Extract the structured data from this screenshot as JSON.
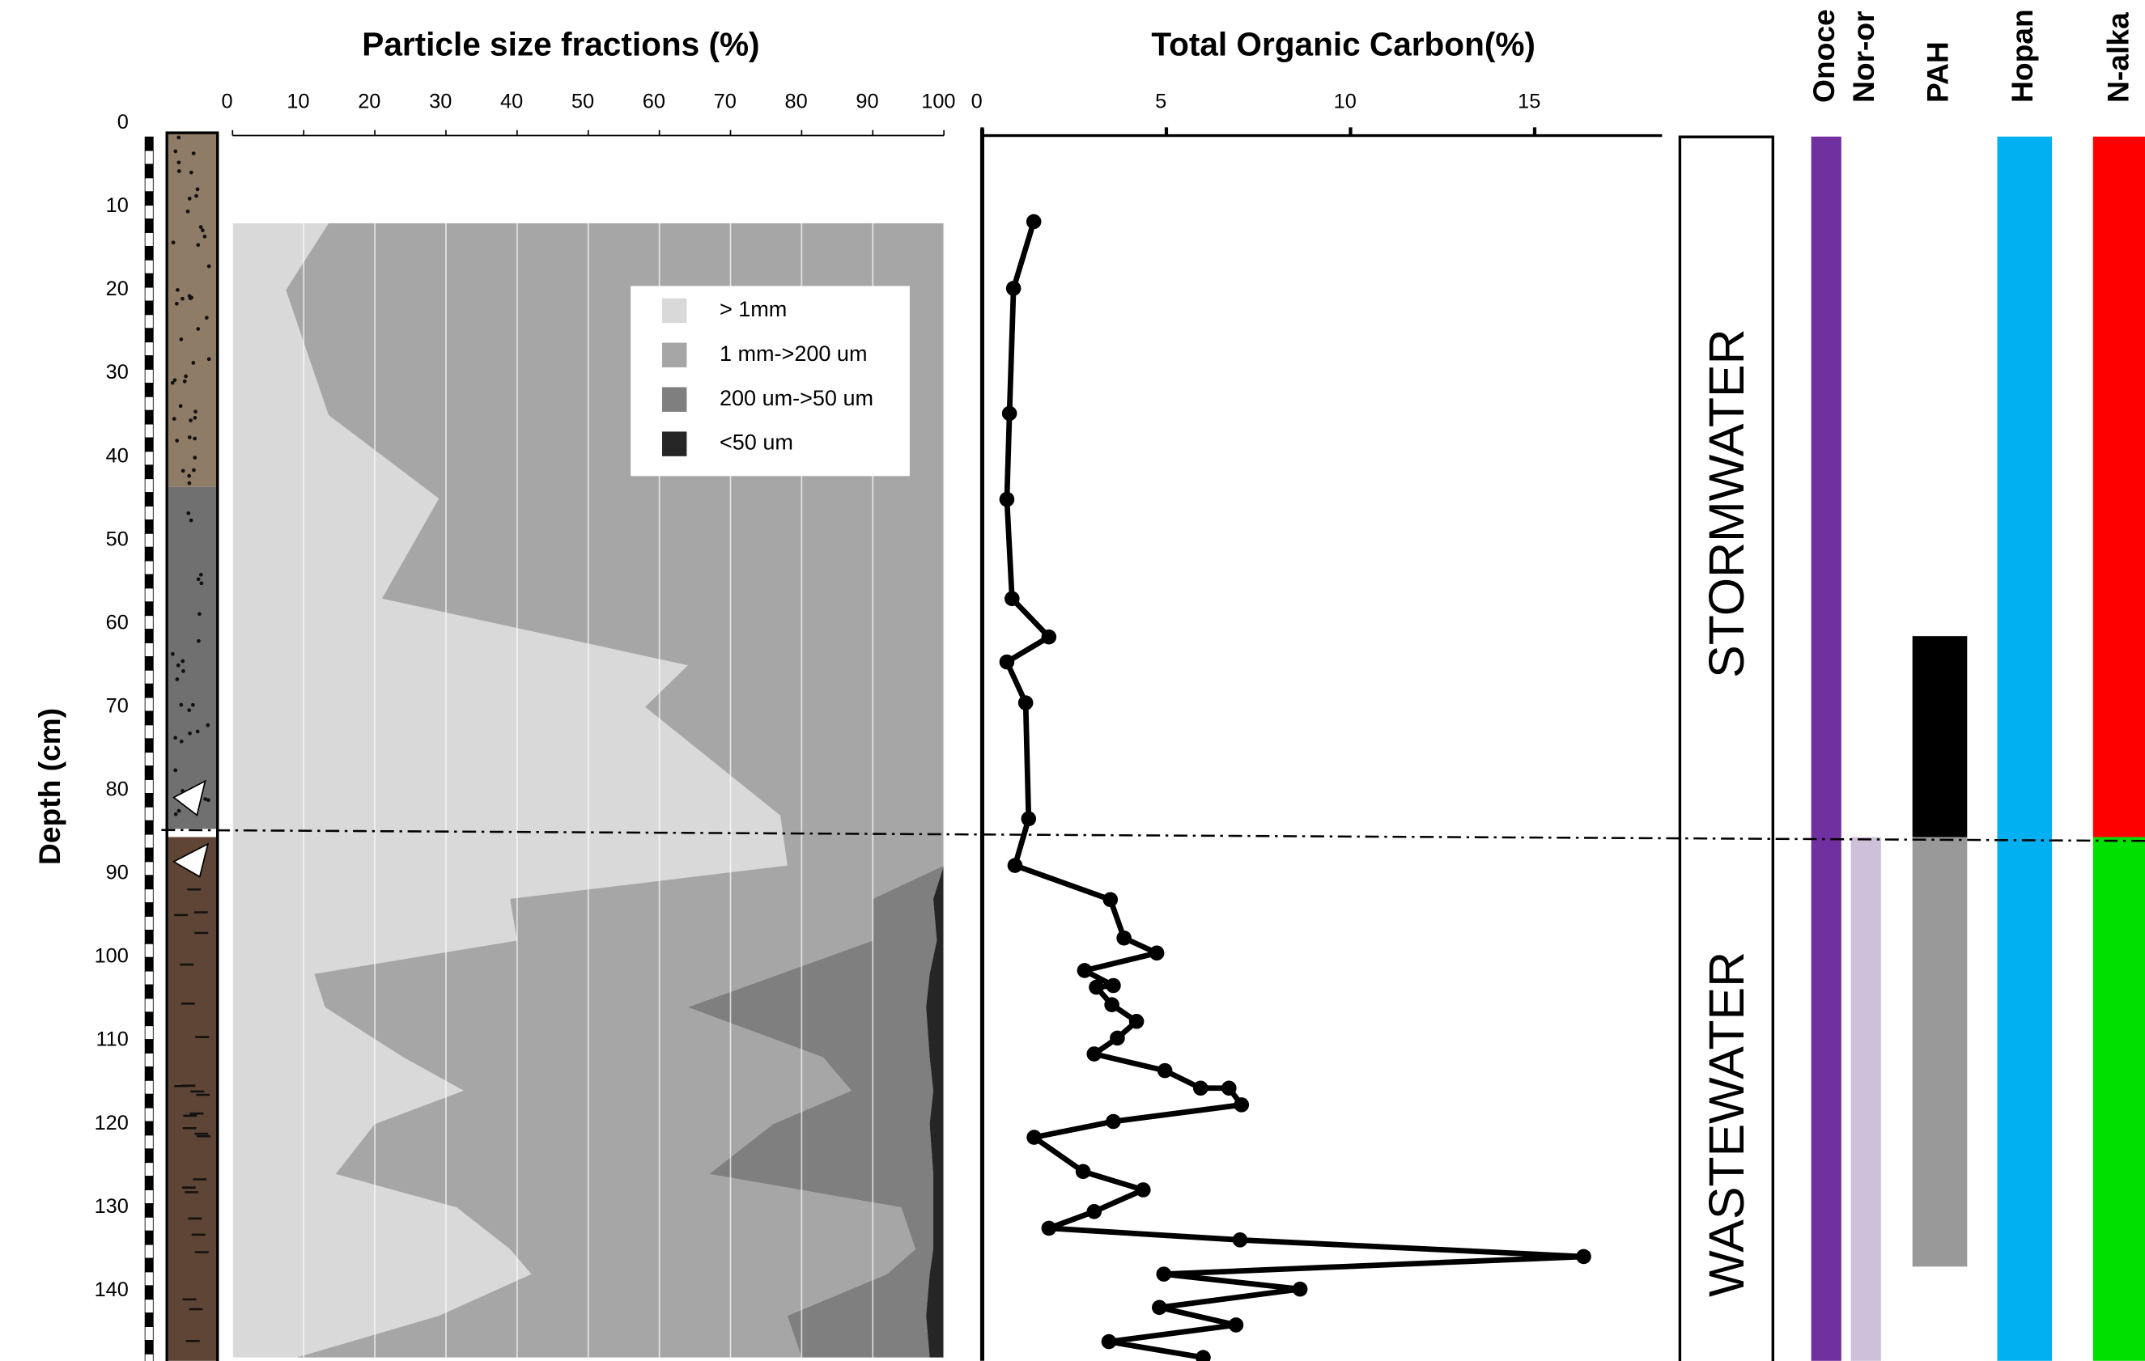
{
  "depth_axis": {
    "label": "Depth (cm)",
    "lim": [
      0,
      148.4
    ],
    "ticks": [
      0,
      10,
      20,
      30,
      40,
      50,
      60,
      70,
      80,
      90,
      100,
      110,
      120,
      130,
      140
    ]
  },
  "boundary": 85.4,
  "zones": [
    {
      "label": "STORMWATER"
    },
    {
      "label": "WASTEWATER"
    }
  ],
  "chart_data": [
    {
      "type": "area",
      "title": "Particle size fractions (%)",
      "xlim": [
        0,
        100
      ],
      "xticks": [
        0,
        10,
        20,
        30,
        40,
        50,
        60,
        70,
        80,
        90,
        100
      ],
      "grid": true,
      "y": [
        12,
        20,
        35,
        45,
        57,
        65,
        70,
        83,
        89,
        93,
        98,
        102,
        106,
        112,
        116,
        120,
        126,
        130,
        135,
        138,
        143,
        148
      ],
      "series": [
        {
          "name": "> 1mm",
          "color": "#d9d9d9",
          "values": [
            13.5,
            7.5,
            13.5,
            29,
            21,
            64,
            58,
            77,
            78,
            39,
            40,
            11.5,
            13,
            24,
            32.5,
            20,
            14.5,
            31.5,
            39,
            42,
            29,
            9
          ]
        },
        {
          "name": "1 mm->200 um",
          "color": "#a6a6a6",
          "values": [
            86.5,
            92.5,
            86.5,
            71,
            79,
            36,
            42,
            23,
            22,
            51,
            50,
            65.5,
            51,
            59,
            54.5,
            56,
            52.5,
            62.5,
            57,
            50,
            49,
            71
          ]
        },
        {
          "name": "200 um->50 um",
          "color": "#7f7f7f",
          "values": [
            0,
            0,
            0,
            0,
            0,
            0,
            0,
            0,
            0,
            8.5,
            9,
            21,
            33.5,
            15,
            11.5,
            22,
            31.5,
            4.5,
            2.5,
            6,
            19.5,
            18
          ]
        },
        {
          "name": "<50 um",
          "color": "#262626",
          "values": [
            0,
            0,
            0,
            0,
            0,
            0,
            0,
            0,
            0,
            1.5,
            1,
            2,
            2.5,
            2,
            1.5,
            2,
            1.5,
            1.5,
            1.5,
            2,
            2.5,
            2
          ]
        }
      ]
    },
    {
      "type": "line",
      "title": "Total Organic Carbon(%)",
      "xlim": [
        0,
        18.46
      ],
      "xticks": [
        0,
        5,
        10,
        15
      ],
      "color": "#000000",
      "y": [
        11.8,
        19.8,
        34.8,
        45.1,
        57,
        61.6,
        64.6,
        69.5,
        83.4,
        89,
        93.1,
        97.7,
        99.5,
        101.6,
        103.4,
        103.6,
        105.7,
        107.7,
        109.7,
        111.6,
        113.6,
        115.7,
        115.7,
        117.7,
        119.7,
        121.6,
        125.7,
        127.9,
        130.5,
        132.5,
        133.9,
        135.9,
        138,
        139.8,
        142,
        144.1,
        146.1,
        148
      ],
      "values": [
        1.4,
        0.85,
        0.74,
        0.67,
        0.81,
        1.81,
        0.67,
        1.18,
        1.26,
        0.89,
        3.48,
        3.85,
        4.74,
        2.78,
        3.56,
        3.1,
        3.52,
        4.19,
        3.67,
        3.04,
        4.96,
        5.93,
        6.7,
        7.04,
        3.56,
        1.41,
        2.74,
        4.37,
        3.04,
        1.81,
        7.0,
        16.33,
        4.93,
        8.63,
        4.81,
        6.89,
        3.44,
        6.0
      ]
    },
    {
      "type": "range",
      "columns": [
        {
          "label": "Onoce",
          "segments": [
            {
              "color": "#7030a0",
              "range": [
                1.6,
                148.4
              ]
            }
          ]
        },
        {
          "label": "Nor-or",
          "segments": [
            {
              "color": "#ccc0da",
              "range": [
                85.6,
                148.4
              ]
            }
          ]
        },
        {
          "label": "PAH",
          "segments": [
            {
              "color": "#000000",
              "range": [
                61.5,
                85.6
              ]
            },
            {
              "color": "#999999",
              "range": [
                85.6,
                137.1
              ]
            }
          ]
        },
        {
          "label": "Hopan",
          "segments": [
            {
              "color": "#00b0f0",
              "range": [
                1.6,
                148.4
              ]
            }
          ]
        },
        {
          "label": "N-alka",
          "segments": [
            {
              "color": "#ff0000",
              "range": [
                1.6,
                85.6
              ]
            },
            {
              "color": "#00e000",
              "range": [
                85.6,
                148.4
              ]
            }
          ]
        }
      ]
    }
  ]
}
